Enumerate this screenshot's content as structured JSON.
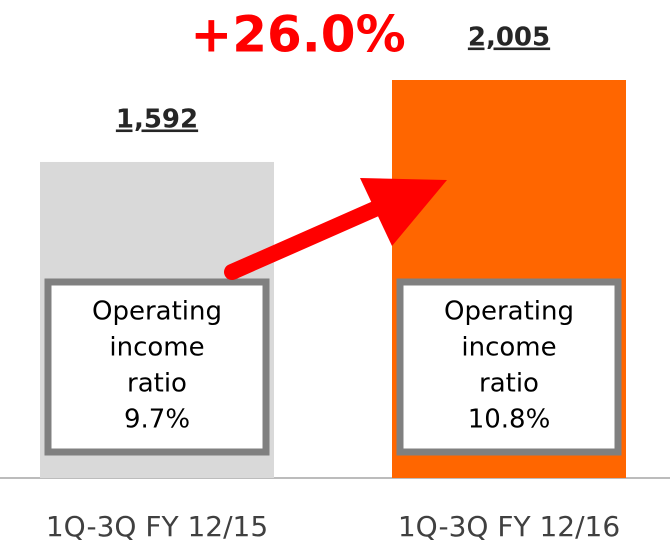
{
  "chart_data": {
    "type": "bar",
    "annotation": "+26.0%",
    "categories": [
      "1Q-3Q FY 12/15",
      "1Q-3Q FY 12/16"
    ],
    "values": [
      1592,
      2005
    ],
    "value_labels": [
      "1,592",
      "2,005"
    ],
    "colors": [
      "#d9d9d9",
      "#ff6600"
    ],
    "box_labels": [
      [
        "Operating",
        "income",
        "ratio",
        "9.7%"
      ],
      [
        "Operating",
        "income",
        "ratio",
        "10.8%"
      ]
    ]
  }
}
